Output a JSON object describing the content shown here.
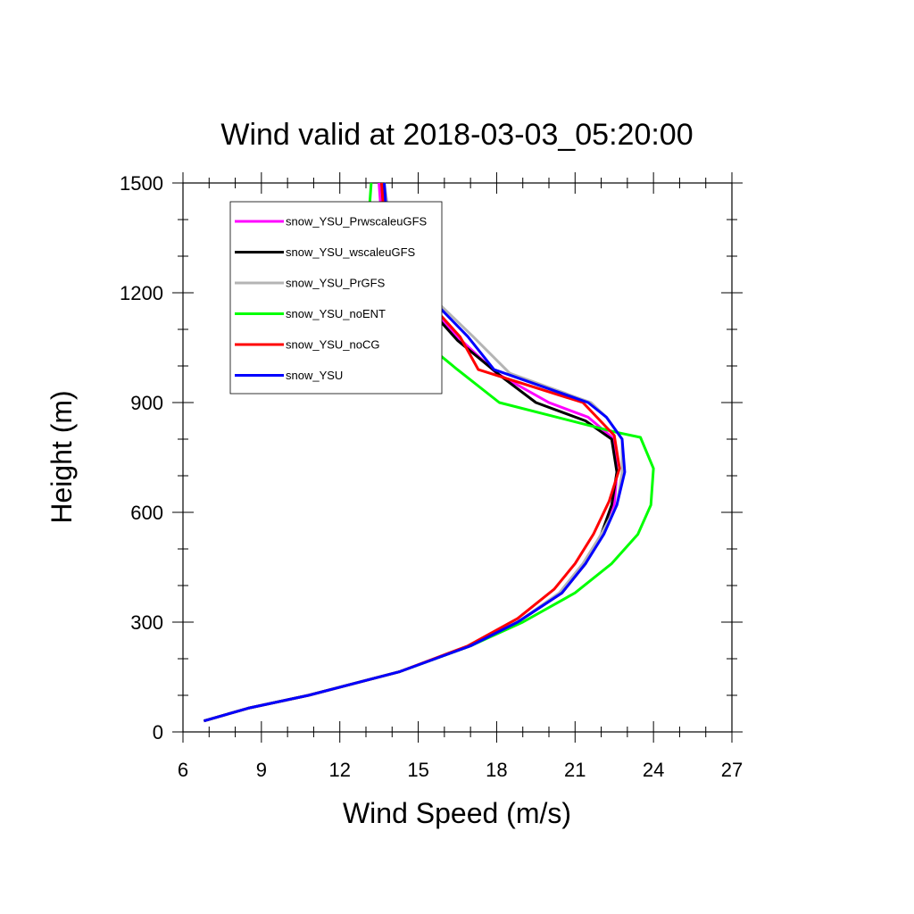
{
  "chart_data": {
    "type": "line",
    "title": "Wind valid at 2018-03-03_05:20:00",
    "xlabel": "Wind Speed (m/s)",
    "ylabel": "Height (m)",
    "xlim": [
      6,
      27
    ],
    "ylim": [
      0,
      1500
    ],
    "x_ticks": [
      "6",
      "9",
      "12",
      "15",
      "18",
      "21",
      "24",
      "27"
    ],
    "y_ticks": [
      "0",
      "300",
      "600",
      "900",
      "1200",
      "1500"
    ],
    "grid": false,
    "legend_position": "top-left",
    "series": [
      {
        "name": "snow_YSU_PrwscaleuGFS",
        "color": "#ff00ff",
        "points": [
          [
            6.8,
            30
          ],
          [
            8.5,
            65
          ],
          [
            10.8,
            100
          ],
          [
            14.3,
            165
          ],
          [
            17,
            235
          ],
          [
            18.8,
            300
          ],
          [
            20.5,
            380
          ],
          [
            21.4,
            460
          ],
          [
            22,
            540
          ],
          [
            22.5,
            620
          ],
          [
            22.6,
            710
          ],
          [
            22.5,
            800
          ],
          [
            21.5,
            860
          ],
          [
            20,
            900
          ],
          [
            18,
            980
          ],
          [
            16.5,
            1080
          ],
          [
            15,
            1190
          ],
          [
            14,
            1300
          ],
          [
            13.6,
            1400
          ],
          [
            13.5,
            1500
          ]
        ]
      },
      {
        "name": "snow_YSU_wscaleuGFS",
        "color": "#000000",
        "points": [
          [
            6.8,
            30
          ],
          [
            8.5,
            65
          ],
          [
            10.8,
            100
          ],
          [
            14.3,
            165
          ],
          [
            17,
            235
          ],
          [
            18.8,
            300
          ],
          [
            20.5,
            380
          ],
          [
            21.4,
            460
          ],
          [
            22,
            540
          ],
          [
            22.4,
            620
          ],
          [
            22.6,
            710
          ],
          [
            22.4,
            800
          ],
          [
            21.4,
            850
          ],
          [
            19.5,
            900
          ],
          [
            18.2,
            970
          ],
          [
            16.5,
            1070
          ],
          [
            15,
            1190
          ],
          [
            14,
            1300
          ],
          [
            13.7,
            1400
          ],
          [
            13.6,
            1500
          ]
        ]
      },
      {
        "name": "snow_YSU_PrGFS",
        "color": "#b4b4b4",
        "points": [
          [
            6.8,
            30
          ],
          [
            8.5,
            65
          ],
          [
            10.8,
            100
          ],
          [
            14.3,
            165
          ],
          [
            17,
            235
          ],
          [
            18.8,
            300
          ],
          [
            20.4,
            380
          ],
          [
            21.3,
            460
          ],
          [
            22,
            540
          ],
          [
            22.6,
            620
          ],
          [
            22.8,
            710
          ],
          [
            22.8,
            800
          ],
          [
            22.2,
            860
          ],
          [
            21.6,
            900
          ],
          [
            18.5,
            980
          ],
          [
            17.1,
            1080
          ],
          [
            15.5,
            1190
          ],
          [
            14.3,
            1300
          ],
          [
            13.9,
            1400
          ],
          [
            13.7,
            1500
          ]
        ]
      },
      {
        "name": "snow_YSU_noENT",
        "color": "#00ff00",
        "points": [
          [
            6.8,
            30
          ],
          [
            8.5,
            65
          ],
          [
            10.8,
            100
          ],
          [
            14.3,
            165
          ],
          [
            17,
            235
          ],
          [
            19,
            300
          ],
          [
            21,
            380
          ],
          [
            22.4,
            460
          ],
          [
            23.4,
            540
          ],
          [
            23.9,
            620
          ],
          [
            24,
            720
          ],
          [
            23.5,
            805
          ],
          [
            22.5,
            820
          ],
          [
            18.1,
            900
          ],
          [
            16.5,
            990
          ],
          [
            14.8,
            1090
          ],
          [
            13.3,
            1190
          ],
          [
            13,
            1300
          ],
          [
            13.1,
            1400
          ],
          [
            13.2,
            1500
          ]
        ]
      },
      {
        "name": "snow_YSU_noCG",
        "color": "#ff0000",
        "points": [
          [
            6.8,
            30
          ],
          [
            8.5,
            65
          ],
          [
            10.8,
            100
          ],
          [
            14.3,
            165
          ],
          [
            16.9,
            235
          ],
          [
            18.8,
            310
          ],
          [
            20.2,
            390
          ],
          [
            21,
            460
          ],
          [
            21.7,
            540
          ],
          [
            22.3,
            630
          ],
          [
            22.7,
            720
          ],
          [
            22.5,
            810
          ],
          [
            21.3,
            900
          ],
          [
            17.3,
            990
          ],
          [
            16.6,
            1080
          ],
          [
            15.2,
            1190
          ],
          [
            14.1,
            1300
          ],
          [
            13.7,
            1400
          ],
          [
            13.6,
            1500
          ]
        ]
      },
      {
        "name": "snow_YSU",
        "color": "#0000ff",
        "points": [
          [
            6.8,
            30
          ],
          [
            8.5,
            65
          ],
          [
            10.8,
            100
          ],
          [
            14.3,
            165
          ],
          [
            17,
            235
          ],
          [
            18.8,
            300
          ],
          [
            20.5,
            380
          ],
          [
            21.4,
            460
          ],
          [
            22.1,
            540
          ],
          [
            22.6,
            620
          ],
          [
            22.9,
            710
          ],
          [
            22.8,
            800
          ],
          [
            22.2,
            860
          ],
          [
            21.5,
            900
          ],
          [
            17.9,
            990
          ],
          [
            16.9,
            1080
          ],
          [
            15.4,
            1190
          ],
          [
            14.2,
            1300
          ],
          [
            13.8,
            1400
          ],
          [
            13.7,
            1500
          ]
        ]
      }
    ]
  }
}
